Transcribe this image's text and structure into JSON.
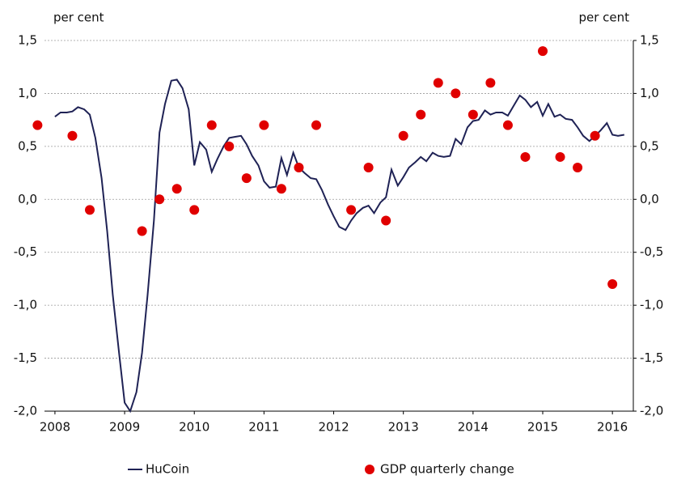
{
  "chart_data": {
    "type": "combo",
    "y_label": "per cent",
    "y2_label": "per cent",
    "xlim": [
      2007.85,
      2016.3
    ],
    "xticks": [
      2008,
      2009,
      2010,
      2011,
      2012,
      2013,
      2014,
      2015,
      2016
    ],
    "ylim": [
      -2,
      1.5
    ],
    "yticks": [
      {
        "value": -2,
        "label": "-2,0"
      },
      {
        "value": -1.5,
        "label": "-1,5"
      },
      {
        "value": -1,
        "label": "-1,0"
      },
      {
        "value": -0.5,
        "label": "-0,5"
      },
      {
        "value": 0,
        "label": "0,0"
      },
      {
        "value": 0.5,
        "label": "0,5"
      },
      {
        "value": 1,
        "label": "1,0"
      },
      {
        "value": 1.5,
        "label": "1,5"
      }
    ],
    "y2lim": [
      -2,
      1.5
    ],
    "y2ticks": [
      {
        "value": -2,
        "label": "-2,0"
      },
      {
        "value": -1.5,
        "label": "-1,5"
      },
      {
        "value": -1,
        "label": "-1,0"
      },
      {
        "value": -0.5,
        "label": "-0,5"
      },
      {
        "value": 0,
        "label": "0,0"
      },
      {
        "value": 0.5,
        "label": "0,5"
      },
      {
        "value": 1,
        "label": "1,0"
      },
      {
        "value": 1.5,
        "label": "1,5"
      }
    ],
    "grid": true,
    "series": [
      {
        "name": "HuCoin",
        "type": "line",
        "color": "#1f2255",
        "x": [
          2008.0,
          2008.08,
          2008.17,
          2008.25,
          2008.33,
          2008.42,
          2008.5,
          2008.58,
          2008.67,
          2008.75,
          2008.83,
          2008.92,
          2009.0,
          2009.08,
          2009.17,
          2009.25,
          2009.33,
          2009.42,
          2009.5,
          2009.58,
          2009.67,
          2009.75,
          2009.83,
          2009.92,
          2010.0,
          2010.08,
          2010.17,
          2010.25,
          2010.33,
          2010.42,
          2010.5,
          2010.58,
          2010.67,
          2010.75,
          2010.83,
          2010.92,
          2011.0,
          2011.08,
          2011.17,
          2011.25,
          2011.33,
          2011.42,
          2011.5,
          2011.58,
          2011.67,
          2011.75,
          2011.83,
          2011.92,
          2012.0,
          2012.08,
          2012.17,
          2012.25,
          2012.33,
          2012.42,
          2012.5,
          2012.58,
          2012.67,
          2012.75,
          2012.83,
          2012.92,
          2013.0,
          2013.08,
          2013.17,
          2013.25,
          2013.33,
          2013.42,
          2013.5,
          2013.58,
          2013.67,
          2013.75,
          2013.83,
          2013.92,
          2014.0,
          2014.08,
          2014.17,
          2014.25,
          2014.33,
          2014.42,
          2014.5,
          2014.58,
          2014.67,
          2014.75,
          2014.83,
          2014.92,
          2015.0,
          2015.08,
          2015.17,
          2015.25,
          2015.33,
          2015.42,
          2015.5,
          2015.58,
          2015.67,
          2015.75,
          2015.83,
          2015.92,
          2016.0,
          2016.08,
          2016.17
        ],
        "values": [
          0.78,
          0.82,
          0.82,
          0.83,
          0.87,
          0.85,
          0.8,
          0.58,
          0.2,
          -0.3,
          -0.9,
          -1.45,
          -1.92,
          -2.0,
          -1.82,
          -1.45,
          -0.9,
          -0.2,
          0.63,
          0.9,
          1.12,
          1.13,
          1.05,
          0.85,
          0.32,
          0.54,
          0.47,
          0.26,
          0.38,
          0.5,
          0.58,
          0.59,
          0.6,
          0.52,
          0.41,
          0.32,
          0.17,
          0.11,
          0.12,
          0.39,
          0.23,
          0.44,
          0.3,
          0.25,
          0.2,
          0.19,
          0.09,
          -0.05,
          -0.16,
          -0.26,
          -0.29,
          -0.2,
          -0.13,
          -0.08,
          -0.06,
          -0.13,
          -0.03,
          0.02,
          0.28,
          0.13,
          0.21,
          0.3,
          0.35,
          0.4,
          0.36,
          0.44,
          0.41,
          0.4,
          0.41,
          0.57,
          0.52,
          0.68,
          0.74,
          0.75,
          0.84,
          0.8,
          0.82,
          0.82,
          0.79,
          0.88,
          0.98,
          0.94,
          0.87,
          0.92,
          0.79,
          0.9,
          0.78,
          0.8,
          0.76,
          0.75,
          0.68,
          0.6,
          0.55,
          0.6,
          0.65,
          0.72,
          0.61,
          0.6,
          0.61
        ]
      },
      {
        "name": "GDP quarterly change",
        "type": "scatter",
        "color": "#e00000",
        "axis": "y2",
        "x": [
          2007.75,
          2008.25,
          2008.5,
          2009.25,
          2009.5,
          2009.75,
          2010.0,
          2010.25,
          2010.5,
          2010.75,
          2011.0,
          2011.25,
          2011.5,
          2011.75,
          2012.25,
          2012.5,
          2012.75,
          2013.0,
          2013.25,
          2013.5,
          2013.75,
          2014.0,
          2014.25,
          2014.5,
          2014.75,
          2015.0,
          2015.25,
          2015.5,
          2015.75,
          2016.0
        ],
        "values": [
          0.7,
          0.6,
          -0.1,
          -0.3,
          0.0,
          0.1,
          -0.1,
          0.7,
          0.5,
          0.2,
          0.7,
          0.1,
          0.3,
          0.7,
          -0.1,
          0.3,
          -0.2,
          0.6,
          0.8,
          1.1,
          1.0,
          0.8,
          1.1,
          0.7,
          0.4,
          1.4,
          0.4,
          0.3,
          0.6,
          -0.8
        ]
      }
    ]
  }
}
